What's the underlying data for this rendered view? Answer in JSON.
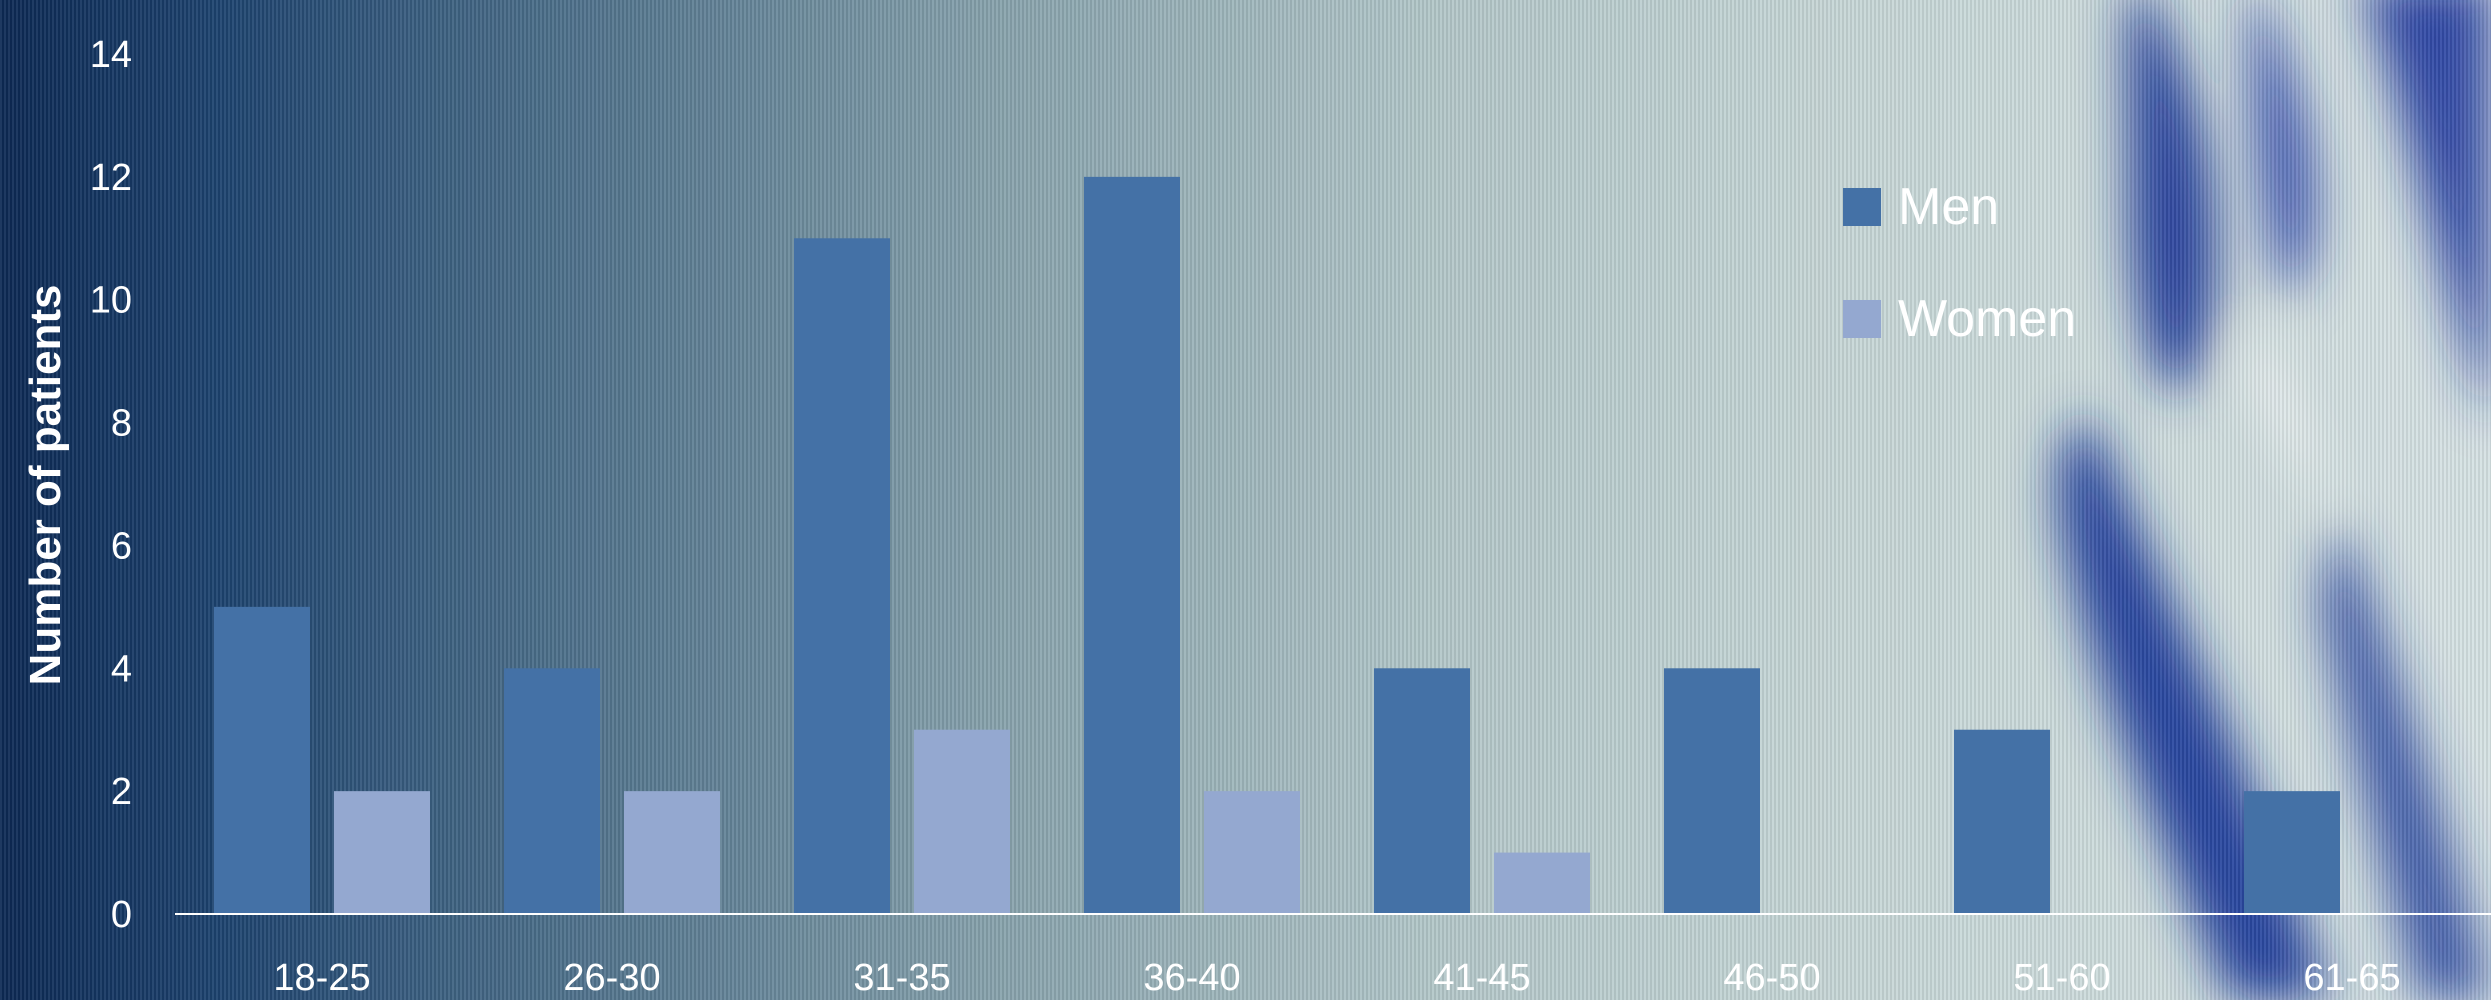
{
  "chart_data": {
    "type": "bar",
    "categories": [
      "18-25",
      "26-30",
      "31-35",
      "36-40",
      "41-45",
      "46-50",
      "51-60",
      "61-65"
    ],
    "series": [
      {
        "name": "Men",
        "color": "#4471a6",
        "values": [
          5,
          4,
          11,
          12,
          4,
          4,
          3,
          2
        ]
      },
      {
        "name": "Women",
        "color": "#94a8d0",
        "values": [
          2,
          2,
          3,
          2,
          1,
          0,
          0,
          0
        ]
      }
    ],
    "title": "",
    "xlabel": "",
    "ylabel": "Number of patients",
    "ylim": [
      0,
      14
    ],
    "yticks": [
      0,
      2,
      4,
      6,
      8,
      10,
      12,
      14
    ],
    "grid": false,
    "legend_position": "top-right"
  },
  "colors": {
    "text": "#ffffff",
    "axis_line": "#ffffff"
  }
}
